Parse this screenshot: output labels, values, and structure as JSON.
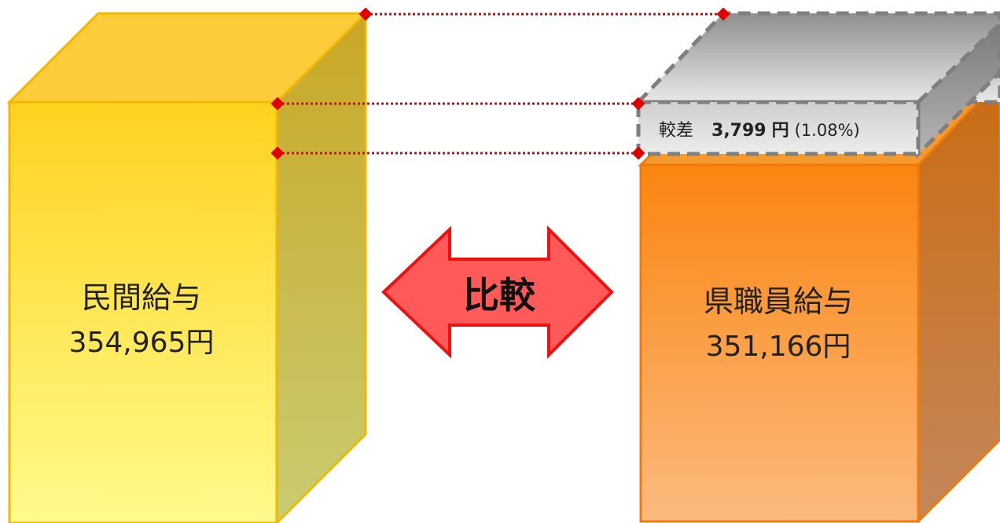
{
  "private_box": {
    "title": "民間給与",
    "amount": "354,965円",
    "colors": {
      "front_top": "#ffd21f",
      "front_bottom": "#fffb8c",
      "top_face": "#fecc3a",
      "side_face": "#c9ac2e",
      "border": "#f0b800"
    }
  },
  "prefecture_box": {
    "title": "県職員給与",
    "amount": "351,166円",
    "colors": {
      "front_top": "#fb8a12",
      "front_bottom": "#fbb87a",
      "top_face": "#f59a2e",
      "side_face": "#c8722a",
      "border": "#f07a0a"
    }
  },
  "difference_box": {
    "label": "較差",
    "amount": "3,799",
    "unit": "円",
    "percent": "(1.08%)",
    "colors": {
      "light": "#e6e6e6",
      "dark": "#8e8e8e",
      "border": "#7f7f7f"
    }
  },
  "compare_arrow": {
    "label": "比較",
    "colors": {
      "fill": "#ff5a5a",
      "border": "#ee1111"
    }
  },
  "guide_lines": {
    "color": "#e00000"
  }
}
